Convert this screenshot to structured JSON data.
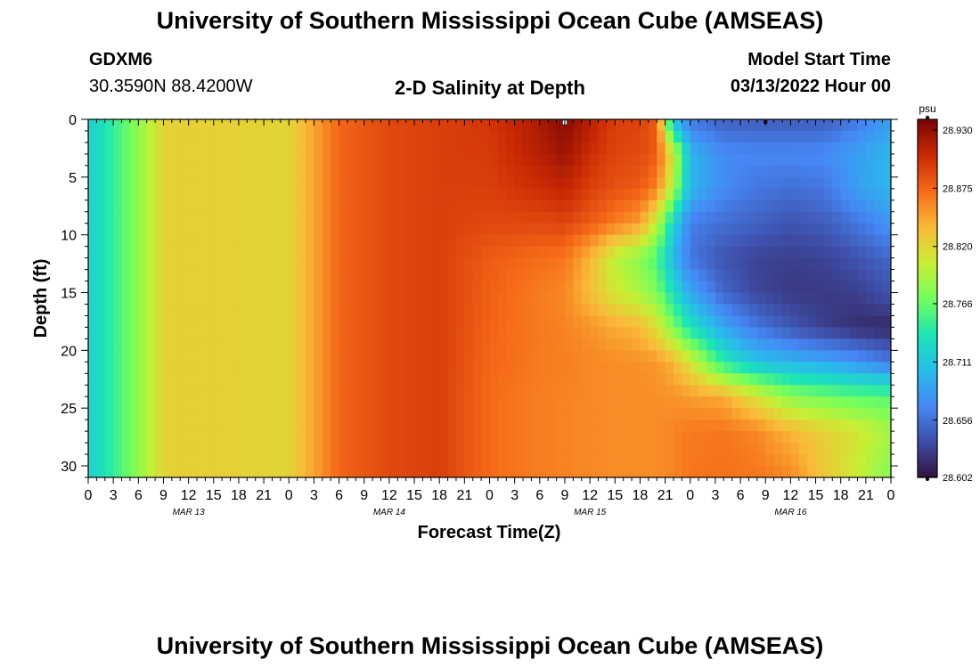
{
  "header": {
    "title": "University of Southern Mississippi Ocean Cube (AMSEAS)",
    "station_id": "GDXM6",
    "station_coords": "30.3590N  88.4200W",
    "plot_title": "2-D Salinity at Depth",
    "model_start_label": "Model Start Time",
    "model_start_value": "03/13/2022 Hour 00"
  },
  "footer": {
    "title": "University of Southern Mississippi Ocean Cube (AMSEAS)"
  },
  "chart_data": {
    "type": "heatmap",
    "title": "2-D Salinity at Depth",
    "xlabel": "Forecast Time(Z)",
    "ylabel": "Depth (ft)",
    "x_tick_labels": [
      "0",
      "3",
      "6",
      "9",
      "12",
      "15",
      "18",
      "21",
      "0",
      "3",
      "6",
      "9",
      "12",
      "15",
      "18",
      "21",
      "0",
      "3",
      "6",
      "9",
      "12",
      "15",
      "18",
      "21",
      "0",
      "3",
      "6",
      "9",
      "12",
      "15",
      "18",
      "21",
      "0"
    ],
    "x_hours": [
      0,
      3,
      6,
      9,
      12,
      15,
      18,
      21,
      24,
      27,
      30,
      33,
      36,
      39,
      42,
      45,
      48,
      51,
      54,
      57,
      60,
      63,
      66,
      69,
      72,
      75,
      78,
      81,
      84,
      87,
      90,
      93,
      96
    ],
    "xlim_hours": [
      0,
      96
    ],
    "date_labels": [
      {
        "text": "MAR 13",
        "hour": 12
      },
      {
        "text": "MAR 14",
        "hour": 36
      },
      {
        "text": "MAR 15",
        "hour": 60
      },
      {
        "text": "MAR 16",
        "hour": 84
      }
    ],
    "y_ticks": [
      0,
      5,
      10,
      15,
      20,
      25,
      30
    ],
    "ylim": [
      0,
      31
    ],
    "y_inverted": true,
    "colorbar": {
      "unit": "psu",
      "tick_labels": [
        "28.930",
        "28.875",
        "28.820",
        "28.766",
        "28.711",
        "28.656",
        "28.602"
      ],
      "range": [
        28.602,
        28.94
      ],
      "colormap": [
        "#30123b",
        "#3e4da6",
        "#4687f5",
        "#28bceb",
        "#1be5b5",
        "#74fe5d",
        "#c8ef34",
        "#faba39",
        "#f66b19",
        "#cb2a04",
        "#7a0403"
      ]
    },
    "depth_levels_ft": [
      0,
      3,
      6,
      9,
      12,
      15,
      18,
      21,
      24,
      27,
      31
    ],
    "time_hours": [
      0,
      3,
      6,
      9,
      12,
      18,
      24,
      30,
      36,
      42,
      48,
      54,
      57,
      60,
      63,
      66,
      68,
      70,
      72,
      76,
      80,
      84,
      88,
      92,
      96
    ],
    "salinity_psu": [
      [
        28.717,
        28.747,
        28.782,
        28.823,
        28.825,
        28.824,
        28.822,
        28.875,
        28.89,
        28.895,
        28.9,
        28.92,
        28.935,
        28.915,
        28.895,
        28.893,
        28.88,
        28.7,
        28.66,
        28.648,
        28.646,
        28.644,
        28.646,
        28.662,
        28.685
      ],
      [
        28.717,
        28.747,
        28.782,
        28.823,
        28.825,
        28.824,
        28.822,
        28.875,
        28.89,
        28.895,
        28.898,
        28.915,
        28.925,
        28.905,
        28.892,
        28.89,
        28.88,
        28.81,
        28.7,
        28.672,
        28.67,
        28.67,
        28.672,
        28.686,
        28.7
      ],
      [
        28.717,
        28.747,
        28.782,
        28.823,
        28.825,
        28.824,
        28.822,
        28.875,
        28.89,
        28.895,
        28.895,
        28.905,
        28.91,
        28.895,
        28.885,
        28.88,
        28.862,
        28.79,
        28.7,
        28.672,
        28.66,
        28.656,
        28.66,
        28.685,
        28.7
      ],
      [
        28.717,
        28.747,
        28.782,
        28.823,
        28.825,
        28.824,
        28.822,
        28.875,
        28.89,
        28.895,
        28.89,
        28.89,
        28.892,
        28.88,
        28.865,
        28.85,
        28.8,
        28.72,
        28.665,
        28.655,
        28.648,
        28.64,
        28.645,
        28.66,
        28.68
      ],
      [
        28.717,
        28.747,
        28.782,
        28.823,
        28.825,
        28.824,
        28.822,
        28.875,
        28.89,
        28.895,
        28.88,
        28.872,
        28.868,
        28.84,
        28.8,
        28.78,
        28.755,
        28.7,
        28.66,
        28.64,
        28.63,
        28.628,
        28.63,
        28.64,
        28.652
      ],
      [
        28.717,
        28.747,
        28.782,
        28.823,
        28.825,
        28.824,
        28.822,
        28.875,
        28.89,
        28.895,
        28.878,
        28.865,
        28.86,
        28.835,
        28.81,
        28.792,
        28.775,
        28.73,
        28.69,
        28.65,
        28.632,
        28.625,
        28.625,
        28.628,
        28.64
      ],
      [
        28.717,
        28.747,
        28.782,
        28.823,
        28.825,
        28.824,
        28.822,
        28.875,
        28.89,
        28.895,
        28.876,
        28.866,
        28.862,
        28.855,
        28.845,
        28.838,
        28.815,
        28.775,
        28.735,
        28.69,
        28.66,
        28.642,
        28.628,
        28.618,
        28.615
      ],
      [
        28.717,
        28.747,
        28.782,
        28.823,
        28.825,
        28.824,
        28.822,
        28.875,
        28.89,
        28.895,
        28.875,
        28.866,
        28.864,
        28.86,
        28.858,
        28.856,
        28.854,
        28.84,
        28.812,
        28.742,
        28.708,
        28.698,
        28.69,
        28.678,
        28.66
      ],
      [
        28.717,
        28.747,
        28.782,
        28.823,
        28.825,
        28.824,
        28.822,
        28.875,
        28.89,
        28.895,
        28.873,
        28.864,
        28.862,
        28.86,
        28.858,
        28.858,
        28.857,
        28.855,
        28.852,
        28.845,
        28.812,
        28.78,
        28.77,
        28.762,
        28.76
      ],
      [
        28.717,
        28.747,
        28.782,
        28.823,
        28.825,
        28.824,
        28.822,
        28.875,
        28.89,
        28.895,
        28.873,
        28.864,
        28.862,
        28.86,
        28.858,
        28.858,
        28.858,
        28.862,
        28.866,
        28.868,
        28.86,
        28.84,
        28.825,
        28.812,
        28.79
      ],
      [
        28.717,
        28.747,
        28.782,
        28.823,
        28.825,
        28.824,
        28.822,
        28.875,
        28.89,
        28.895,
        28.873,
        28.864,
        28.862,
        28.86,
        28.858,
        28.858,
        28.858,
        28.862,
        28.868,
        28.87,
        28.868,
        28.86,
        28.83,
        28.805,
        28.775
      ]
    ]
  }
}
